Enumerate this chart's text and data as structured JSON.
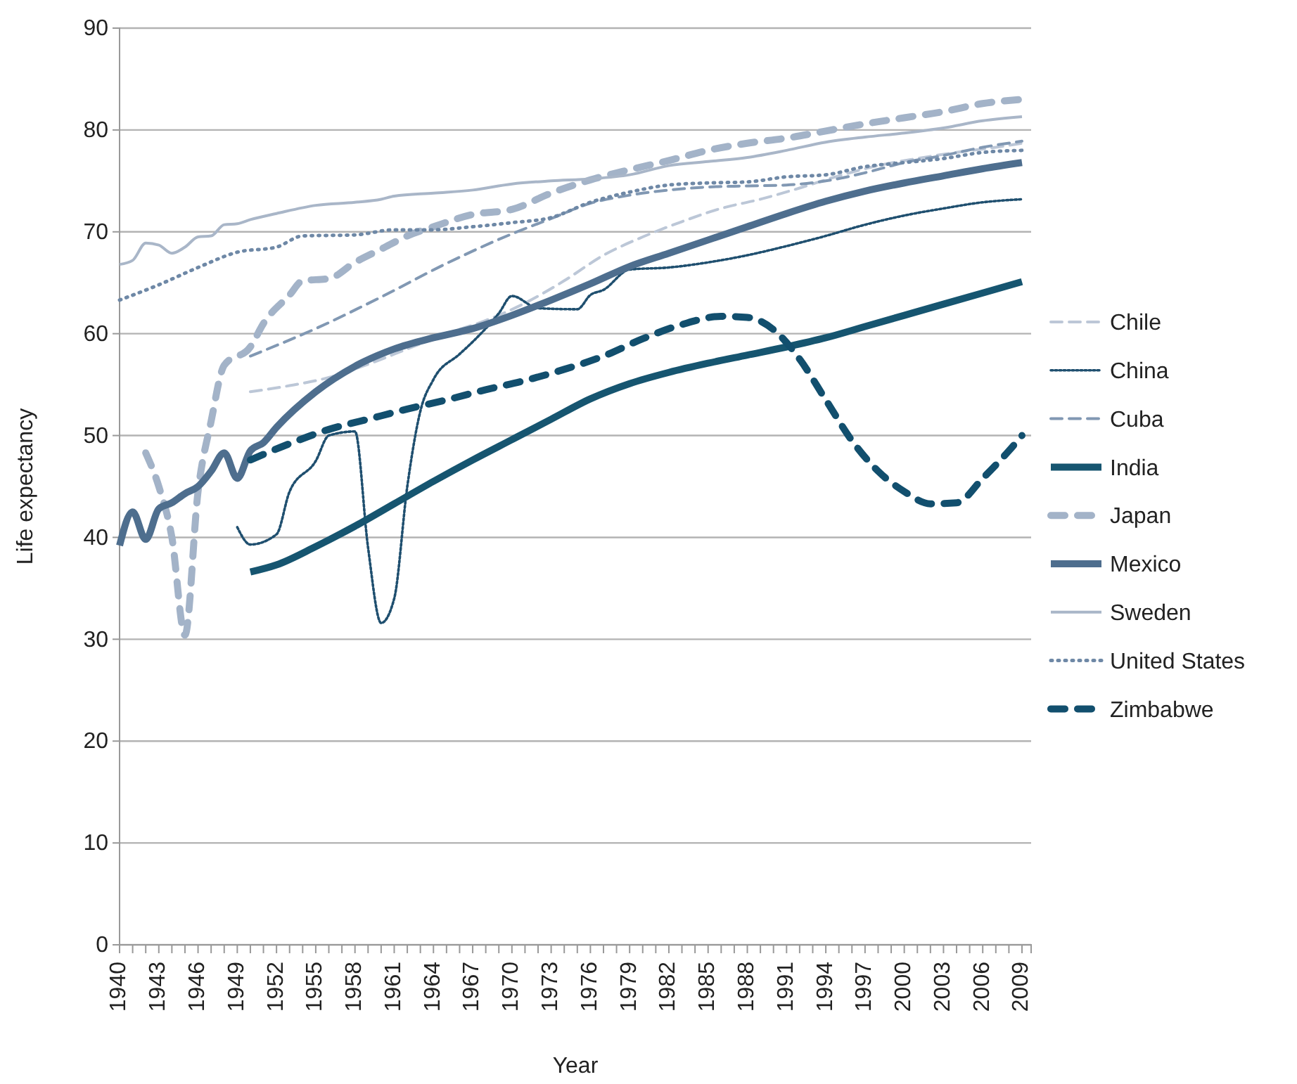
{
  "chart_data": {
    "type": "line",
    "xlabel": "Year",
    "ylabel": "Life expectancy",
    "xlim": [
      1940,
      2009.7
    ],
    "ylim": [
      0,
      90
    ],
    "yticks": [
      0,
      10,
      20,
      30,
      40,
      50,
      60,
      70,
      80,
      90
    ],
    "xticks": [
      1940,
      {
        "value": 1941,
        "label": null
      },
      {
        "value": 1942,
        "label": null
      },
      1943,
      {
        "value": 1944,
        "label": null
      },
      {
        "value": 1945,
        "label": null
      },
      1946,
      {
        "value": 1947,
        "label": null
      },
      {
        "value": 1948,
        "label": null
      },
      1949,
      {
        "value": 1950,
        "label": null
      },
      {
        "value": 1951,
        "label": null
      },
      1952,
      {
        "value": 1953,
        "label": null
      },
      {
        "value": 1954,
        "label": null
      },
      1955,
      {
        "value": 1956,
        "label": null
      },
      {
        "value": 1957,
        "label": null
      },
      1958,
      {
        "value": 1959,
        "label": null
      },
      {
        "value": 1960,
        "label": null
      },
      1961,
      {
        "value": 1962,
        "label": null
      },
      {
        "value": 1963,
        "label": null
      },
      1964,
      {
        "value": 1965,
        "label": null
      },
      {
        "value": 1966,
        "label": null
      },
      1967,
      {
        "value": 1968,
        "label": null
      },
      {
        "value": 1969,
        "label": null
      },
      1970,
      {
        "value": 1971,
        "label": null
      },
      {
        "value": 1972,
        "label": null
      },
      1973,
      {
        "value": 1974,
        "label": null
      },
      {
        "value": 1975,
        "label": null
      },
      1976,
      {
        "value": 1977,
        "label": null
      },
      {
        "value": 1978,
        "label": null
      },
      1979,
      {
        "value": 1980,
        "label": null
      },
      {
        "value": 1981,
        "label": null
      },
      1982,
      {
        "value": 1983,
        "label": null
      },
      {
        "value": 1984,
        "label": null
      },
      1985,
      {
        "value": 1986,
        "label": null
      },
      {
        "value": 1987,
        "label": null
      },
      1988,
      {
        "value": 1989,
        "label": null
      },
      {
        "value": 1990,
        "label": null
      },
      1991,
      {
        "value": 1992,
        "label": null
      },
      {
        "value": 1993,
        "label": null
      },
      1994,
      {
        "value": 1995,
        "label": null
      },
      {
        "value": 1996,
        "label": null
      },
      1997,
      {
        "value": 1998,
        "label": null
      },
      {
        "value": 1999,
        "label": null
      },
      2000,
      {
        "value": 2001,
        "label": null
      },
      {
        "value": 2002,
        "label": null
      },
      2003,
      {
        "value": 2004,
        "label": null
      },
      {
        "value": 2005,
        "label": null
      },
      2006,
      {
        "value": 2007,
        "label": null
      },
      {
        "value": 2008,
        "label": null
      },
      2009
    ],
    "grid": "y",
    "legend": "right",
    "marker": "none",
    "series": [
      {
        "name": "Chile",
        "color": "#bcc7d7",
        "line_style": "dashed",
        "x": [
          1950,
          1953,
          1956,
          1959,
          1962,
          1965,
          1968,
          1971,
          1974,
          1977,
          1980,
          1983,
          1986,
          1989,
          1992,
          1995,
          1998,
          2001,
          2004,
          2007,
          2009
        ],
        "values": [
          54.3,
          54.9,
          55.7,
          57,
          58.5,
          60,
          61.3,
          63,
          65.2,
          67.7,
          69.5,
          71,
          72.3,
          73.2,
          74.3,
          75.5,
          76.5,
          77.2,
          77.8,
          78.3,
          78.7
        ]
      },
      {
        "name": "China",
        "color": "#1f4f6f",
        "line_style": "dotted",
        "x": [
          1949,
          1950,
          1952,
          1953,
          1955,
          1956,
          1958,
          1959,
          1960,
          1961,
          1962,
          1963,
          1964,
          1966,
          1967,
          1969,
          1970,
          1972,
          1975,
          1976,
          1977,
          1979,
          1982,
          1985,
          1988,
          1991,
          1994,
          1997,
          2000,
          2003,
          2006,
          2009
        ],
        "values": [
          41,
          39.3,
          40.3,
          44.5,
          47.5,
          50,
          50.4,
          39,
          31.6,
          34,
          45,
          52.4,
          55.5,
          58,
          59.2,
          62,
          63.7,
          62.5,
          62.4,
          63.8,
          64.3,
          66.3,
          66.5,
          67,
          67.7,
          68.6,
          69.6,
          70.7,
          71.6,
          72.3,
          72.9,
          73.2
        ]
      },
      {
        "name": "Cuba",
        "color": "#8198b3",
        "line_style": "dashed",
        "x": [
          1950,
          1955,
          1960,
          1965,
          1970,
          1973,
          1976,
          1979,
          1982,
          1985,
          1988,
          1991,
          1994,
          1997,
          2000,
          2003,
          2006,
          2009
        ],
        "values": [
          57.8,
          60.5,
          63.6,
          66.9,
          69.8,
          71.3,
          72.8,
          73.6,
          74.1,
          74.4,
          74.5,
          74.6,
          75,
          75.8,
          76.8,
          77.5,
          78.3,
          78.9
        ]
      },
      {
        "name": "India",
        "color": "#165570",
        "line_style": "solid",
        "x": [
          1950,
          1952,
          1955,
          1958,
          1961,
          1964,
          1967,
          1970,
          1973,
          1976,
          1979,
          1982,
          1985,
          1988,
          1991,
          1994,
          1997,
          2000,
          2003,
          2006,
          2009
        ],
        "values": [
          36.6,
          37.3,
          39.1,
          41.1,
          43.3,
          45.5,
          47.6,
          49.6,
          51.6,
          53.6,
          55.1,
          56.2,
          57.1,
          57.9,
          58.7,
          59.6,
          60.7,
          61.8,
          62.9,
          64,
          65.1
        ]
      },
      {
        "name": "Japan",
        "color": "#a3b3c8",
        "line_style": "dashed",
        "x": [
          1942,
          1943,
          1944,
          1945,
          1946,
          1947,
          1948,
          1950,
          1951,
          1953,
          1954,
          1956,
          1958,
          1960,
          1962,
          1964,
          1967,
          1970,
          1973,
          1976,
          1979,
          1982,
          1985,
          1988,
          1991,
          1994,
          1997,
          2000,
          2003,
          2006,
          2009
        ],
        "values": [
          48.3,
          45,
          40,
          30.4,
          44.5,
          51.4,
          56.9,
          58.7,
          61,
          63.8,
          65.2,
          65.4,
          67,
          68.3,
          69.6,
          70.5,
          71.7,
          72.2,
          73.8,
          75.1,
          76.1,
          77,
          78,
          78.7,
          79.2,
          79.9,
          80.6,
          81.2,
          81.8,
          82.6,
          83
        ]
      },
      {
        "name": "Mexico",
        "color": "#4e6e8e",
        "line_style": "solid",
        "x": [
          1940,
          1941,
          1942,
          1943,
          1944,
          1945,
          1946,
          1947,
          1948,
          1949,
          1950,
          1951,
          1952,
          1955,
          1958,
          1961,
          1964,
          1967,
          1970,
          1973,
          1976,
          1979,
          1982,
          1985,
          1988,
          1991,
          1994,
          1997,
          2000,
          2003,
          2006,
          2009
        ],
        "values": [
          39.2,
          42.5,
          39.8,
          42.8,
          43.4,
          44.3,
          45,
          46.5,
          48.3,
          45.8,
          48.5,
          49.3,
          50.8,
          54.3,
          56.8,
          58.5,
          59.6,
          60.5,
          61.8,
          63.3,
          64.9,
          66.6,
          67.9,
          69.2,
          70.5,
          71.8,
          73,
          74,
          74.8,
          75.5,
          76.2,
          76.8
        ]
      },
      {
        "name": "Sweden",
        "color": "#a9b6c8",
        "line_style": "solid",
        "x": [
          1940,
          1941,
          1942,
          1943,
          1944,
          1945,
          1946,
          1947,
          1948,
          1949,
          1950,
          1952,
          1955,
          1958,
          1960,
          1961,
          1964,
          1967,
          1970,
          1973,
          1976,
          1979,
          1982,
          1985,
          1988,
          1991,
          1994,
          1997,
          2000,
          2003,
          2006,
          2009
        ],
        "values": [
          66.8,
          67.2,
          68.9,
          68.7,
          67.9,
          68.5,
          69.5,
          69.6,
          70.7,
          70.8,
          71.2,
          71.8,
          72.6,
          72.9,
          73.2,
          73.5,
          73.8,
          74.1,
          74.7,
          75,
          75.2,
          75.6,
          76.5,
          76.9,
          77.3,
          78,
          78.8,
          79.3,
          79.7,
          80.2,
          80.9,
          81.3
        ]
      },
      {
        "name": "United States",
        "color": "#6e88a6",
        "line_style": "dotted",
        "x": [
          1940,
          1943,
          1946,
          1949,
          1952,
          1954,
          1958,
          1961,
          1964,
          1967,
          1970,
          1973,
          1976,
          1979,
          1982,
          1985,
          1988,
          1991,
          1994,
          1997,
          2000,
          2003,
          2006,
          2009
        ],
        "values": [
          63.3,
          64.8,
          66.5,
          68,
          68.5,
          69.6,
          69.7,
          70.2,
          70.2,
          70.5,
          70.9,
          71.4,
          72.9,
          73.9,
          74.6,
          74.8,
          74.9,
          75.4,
          75.6,
          76.4,
          76.8,
          77.2,
          77.8,
          78
        ]
      },
      {
        "name": "Zimbabwe",
        "color": "#124f6e",
        "line_style": "dashed",
        "x": [
          1950,
          1953,
          1956,
          1959,
          1962,
          1965,
          1968,
          1971,
          1974,
          1977,
          1980,
          1983,
          1986,
          1988,
          1990,
          1992,
          1994,
          1996,
          1998,
          2000,
          2002,
          2004,
          2006,
          2008,
          2009
        ],
        "values": [
          47.6,
          49.2,
          50.6,
          51.6,
          52.6,
          53.5,
          54.5,
          55.4,
          56.5,
          57.8,
          59.5,
          60.9,
          61.7,
          61.6,
          60.4,
          57.5,
          53.5,
          49.5,
          46.5,
          44.5,
          43.3,
          43.4,
          45.8,
          48.5,
          50
        ]
      }
    ]
  }
}
